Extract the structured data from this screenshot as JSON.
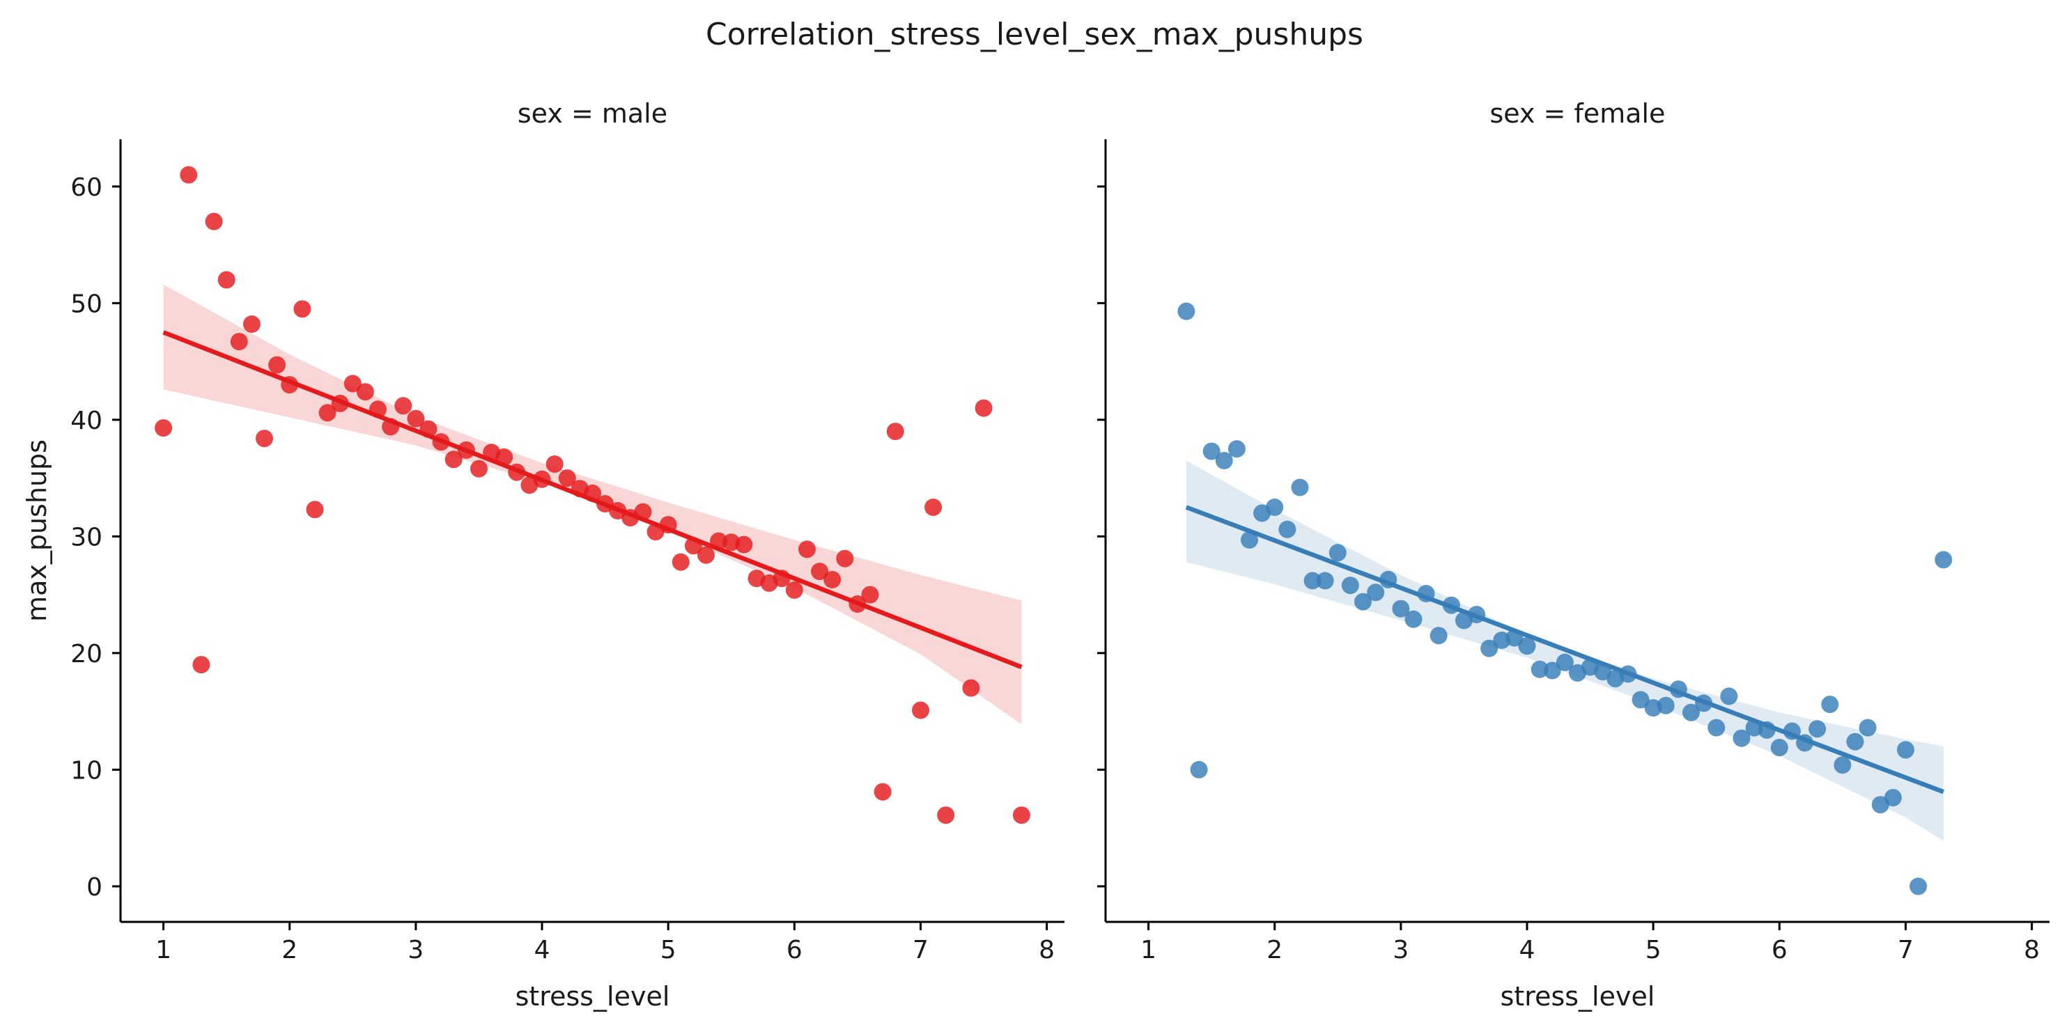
{
  "figure": {
    "title": "Correlation_stress_level_sex_max_pushups"
  },
  "chart_data": {
    "type": "scatter",
    "title": "Correlation_stress_level_sex_max_pushups",
    "xlabel": "stress_level",
    "ylabel": "max_pushups",
    "xlim": [
      0.66,
      8.14
    ],
    "ylim": [
      -3.05,
      64.05
    ],
    "x_ticks": [
      1,
      2,
      3,
      4,
      5,
      6,
      7,
      8
    ],
    "y_ticks": [
      0,
      10,
      20,
      30,
      40,
      50,
      60
    ],
    "grid": false,
    "shared_y": true,
    "facets": [
      {
        "title": "sex = male",
        "color": "#e41a1c",
        "band_color": "#f4b6b7",
        "points": [
          [
            1.0,
            39.3
          ],
          [
            1.2,
            61.0
          ],
          [
            1.3,
            19.0
          ],
          [
            1.4,
            57.0
          ],
          [
            1.5,
            52.0
          ],
          [
            1.6,
            46.7
          ],
          [
            1.7,
            48.2
          ],
          [
            1.8,
            38.4
          ],
          [
            1.9,
            44.7
          ],
          [
            2.0,
            43.0
          ],
          [
            2.1,
            49.5
          ],
          [
            2.2,
            32.3
          ],
          [
            2.3,
            40.6
          ],
          [
            2.4,
            41.4
          ],
          [
            2.5,
            43.1
          ],
          [
            2.6,
            42.4
          ],
          [
            2.7,
            40.9
          ],
          [
            2.8,
            39.4
          ],
          [
            2.9,
            41.2
          ],
          [
            3.0,
            40.1
          ],
          [
            3.1,
            39.2
          ],
          [
            3.2,
            38.1
          ],
          [
            3.3,
            36.6
          ],
          [
            3.4,
            37.4
          ],
          [
            3.5,
            35.8
          ],
          [
            3.6,
            37.2
          ],
          [
            3.7,
            36.8
          ],
          [
            3.8,
            35.5
          ],
          [
            3.9,
            34.4
          ],
          [
            4.0,
            34.9
          ],
          [
            4.1,
            36.2
          ],
          [
            4.2,
            35.0
          ],
          [
            4.3,
            34.1
          ],
          [
            4.4,
            33.7
          ],
          [
            4.5,
            32.8
          ],
          [
            4.6,
            32.2
          ],
          [
            4.7,
            31.6
          ],
          [
            4.8,
            32.1
          ],
          [
            4.9,
            30.4
          ],
          [
            5.0,
            31.0
          ],
          [
            5.1,
            27.8
          ],
          [
            5.2,
            29.2
          ],
          [
            5.3,
            28.4
          ],
          [
            5.4,
            29.6
          ],
          [
            5.5,
            29.5
          ],
          [
            5.6,
            29.3
          ],
          [
            5.7,
            26.4
          ],
          [
            5.8,
            26.0
          ],
          [
            5.9,
            26.4
          ],
          [
            6.0,
            25.4
          ],
          [
            6.1,
            28.9
          ],
          [
            6.2,
            27.0
          ],
          [
            6.3,
            26.3
          ],
          [
            6.4,
            28.1
          ],
          [
            6.5,
            24.2
          ],
          [
            6.6,
            25.0
          ],
          [
            6.7,
            8.1
          ],
          [
            6.8,
            39.0
          ],
          [
            7.0,
            15.1
          ],
          [
            7.1,
            32.5
          ],
          [
            7.2,
            6.1
          ],
          [
            7.4,
            17.0
          ],
          [
            7.5,
            41.0
          ],
          [
            7.8,
            6.1
          ]
        ],
        "regression": {
          "x": [
            1.0,
            7.8
          ],
          "y": [
            47.5,
            18.8
          ]
        },
        "ci_band": {
          "x": [
            1.0,
            2.0,
            3.0,
            4.0,
            5.0,
            6.0,
            7.0,
            7.8
          ],
          "upper": [
            51.6,
            45.6,
            40.3,
            36.3,
            32.9,
            29.7,
            26.7,
            24.5
          ],
          "lower": [
            42.6,
            40.2,
            37.8,
            34.6,
            30.4,
            25.6,
            19.9,
            13.9
          ]
        }
      },
      {
        "title": "sex = female",
        "color": "#377eb8",
        "band_color": "#c5d8ea",
        "points": [
          [
            1.3,
            49.3
          ],
          [
            1.4,
            10.0
          ],
          [
            1.5,
            37.3
          ],
          [
            1.6,
            36.5
          ],
          [
            1.7,
            37.5
          ],
          [
            1.8,
            29.7
          ],
          [
            1.9,
            32.0
          ],
          [
            2.0,
            32.5
          ],
          [
            2.1,
            30.6
          ],
          [
            2.2,
            34.2
          ],
          [
            2.3,
            26.2
          ],
          [
            2.4,
            26.2
          ],
          [
            2.5,
            28.6
          ],
          [
            2.6,
            25.8
          ],
          [
            2.7,
            24.4
          ],
          [
            2.8,
            25.2
          ],
          [
            2.9,
            26.3
          ],
          [
            3.0,
            23.8
          ],
          [
            3.1,
            22.9
          ],
          [
            3.2,
            25.1
          ],
          [
            3.3,
            21.5
          ],
          [
            3.4,
            24.1
          ],
          [
            3.5,
            22.8
          ],
          [
            3.6,
            23.3
          ],
          [
            3.7,
            20.4
          ],
          [
            3.8,
            21.1
          ],
          [
            3.9,
            21.3
          ],
          [
            4.0,
            20.6
          ],
          [
            4.1,
            18.6
          ],
          [
            4.2,
            18.5
          ],
          [
            4.3,
            19.2
          ],
          [
            4.4,
            18.3
          ],
          [
            4.5,
            18.8
          ],
          [
            4.6,
            18.4
          ],
          [
            4.7,
            17.8
          ],
          [
            4.8,
            18.2
          ],
          [
            4.9,
            16.0
          ],
          [
            5.0,
            15.3
          ],
          [
            5.1,
            15.5
          ],
          [
            5.2,
            16.9
          ],
          [
            5.3,
            14.9
          ],
          [
            5.4,
            15.7
          ],
          [
            5.5,
            13.6
          ],
          [
            5.6,
            16.3
          ],
          [
            5.7,
            12.7
          ],
          [
            5.8,
            13.6
          ],
          [
            5.9,
            13.4
          ],
          [
            6.0,
            11.9
          ],
          [
            6.1,
            13.3
          ],
          [
            6.2,
            12.3
          ],
          [
            6.3,
            13.5
          ],
          [
            6.4,
            15.6
          ],
          [
            6.5,
            10.4
          ],
          [
            6.6,
            12.4
          ],
          [
            6.7,
            13.6
          ],
          [
            6.8,
            7.0
          ],
          [
            6.9,
            7.6
          ],
          [
            7.0,
            11.7
          ],
          [
            7.1,
            0.0
          ],
          [
            7.3,
            28.0
          ]
        ],
        "regression": {
          "x": [
            1.3,
            7.3
          ],
          "y": [
            32.5,
            8.1
          ]
        },
        "ci_band": {
          "x": [
            1.3,
            2.0,
            3.0,
            4.0,
            5.0,
            6.0,
            7.0,
            7.3
          ],
          "upper": [
            36.5,
            32.3,
            26.7,
            21.6,
            17.8,
            14.9,
            12.6,
            12.0
          ],
          "lower": [
            27.8,
            25.9,
            22.8,
            19.6,
            15.6,
            11.2,
            5.9,
            3.9
          ]
        }
      }
    ]
  }
}
